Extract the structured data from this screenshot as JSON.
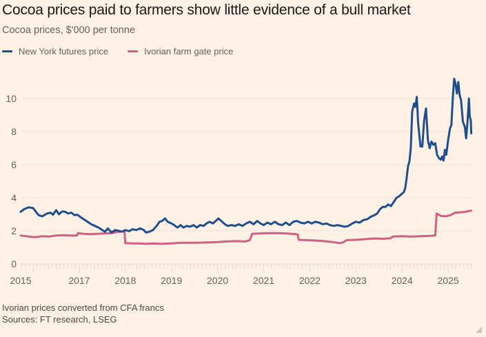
{
  "chart_data": {
    "type": "line",
    "title": "Cocoa prices paid to farmers show little evidence of a bull market",
    "subtitle": "Cocoa prices, $'000 per tonne",
    "xlabel": "",
    "ylabel": "",
    "ylim": [
      0,
      11
    ],
    "xlim": [
      2015.73,
      2025.5
    ],
    "yticks": [
      0,
      2,
      4,
      6,
      8,
      10
    ],
    "xticks": [
      {
        "value": 2015.73,
        "label": "2015"
      },
      {
        "value": 2017,
        "label": "2017"
      },
      {
        "value": 2018,
        "label": "2018"
      },
      {
        "value": 2019,
        "label": "2019"
      },
      {
        "value": 2020,
        "label": "2020"
      },
      {
        "value": 2021,
        "label": "2021"
      },
      {
        "value": 2022,
        "label": "2022"
      },
      {
        "value": 2023,
        "label": "2023"
      },
      {
        "value": 2024,
        "label": "2024"
      },
      {
        "value": 2025,
        "label": "2025"
      }
    ],
    "grid": true,
    "legend_position": "top-left",
    "series": [
      {
        "name": "New York futures price",
        "color": "#1f4e8c",
        "points": [
          [
            2015.73,
            3.15
          ],
          [
            2015.8,
            3.3
          ],
          [
            2015.9,
            3.42
          ],
          [
            2016.0,
            3.38
          ],
          [
            2016.05,
            3.2
          ],
          [
            2016.12,
            2.95
          ],
          [
            2016.2,
            2.88
          ],
          [
            2016.3,
            3.05
          ],
          [
            2016.38,
            3.1
          ],
          [
            2016.43,
            2.98
          ],
          [
            2016.5,
            3.25
          ],
          [
            2016.56,
            3.0
          ],
          [
            2016.63,
            3.18
          ],
          [
            2016.7,
            3.15
          ],
          [
            2016.76,
            3.05
          ],
          [
            2016.83,
            3.1
          ],
          [
            2016.9,
            2.95
          ],
          [
            2016.96,
            2.98
          ],
          [
            2017.02,
            2.85
          ],
          [
            2017.1,
            2.7
          ],
          [
            2017.18,
            2.55
          ],
          [
            2017.26,
            2.4
          ],
          [
            2017.34,
            2.3
          ],
          [
            2017.42,
            2.2
          ],
          [
            2017.5,
            2.05
          ],
          [
            2017.56,
            1.95
          ],
          [
            2017.62,
            2.15
          ],
          [
            2017.7,
            1.9
          ],
          [
            2017.78,
            2.05
          ],
          [
            2017.86,
            2.0
          ],
          [
            2017.93,
            1.95
          ],
          [
            2018.0,
            2.05
          ],
          [
            2018.08,
            1.98
          ],
          [
            2018.16,
            2.1
          ],
          [
            2018.24,
            2.05
          ],
          [
            2018.32,
            2.15
          ],
          [
            2018.4,
            2.05
          ],
          [
            2018.45,
            1.9
          ],
          [
            2018.52,
            1.95
          ],
          [
            2018.6,
            2.05
          ],
          [
            2018.68,
            2.3
          ],
          [
            2018.74,
            2.55
          ],
          [
            2018.8,
            2.6
          ],
          [
            2018.86,
            2.75
          ],
          [
            2018.92,
            2.55
          ],
          [
            2019.0,
            2.45
          ],
          [
            2019.06,
            2.35
          ],
          [
            2019.13,
            2.2
          ],
          [
            2019.2,
            2.35
          ],
          [
            2019.26,
            2.2
          ],
          [
            2019.33,
            2.3
          ],
          [
            2019.4,
            2.25
          ],
          [
            2019.48,
            2.35
          ],
          [
            2019.55,
            2.2
          ],
          [
            2019.62,
            2.35
          ],
          [
            2019.7,
            2.3
          ],
          [
            2019.76,
            2.45
          ],
          [
            2019.83,
            2.55
          ],
          [
            2019.9,
            2.45
          ],
          [
            2019.96,
            2.6
          ],
          [
            2020.02,
            2.75
          ],
          [
            2020.08,
            2.6
          ],
          [
            2020.16,
            2.4
          ],
          [
            2020.22,
            2.3
          ],
          [
            2020.3,
            2.35
          ],
          [
            2020.38,
            2.3
          ],
          [
            2020.46,
            2.4
          ],
          [
            2020.54,
            2.3
          ],
          [
            2020.62,
            2.45
          ],
          [
            2020.7,
            2.55
          ],
          [
            2020.78,
            2.4
          ],
          [
            2020.86,
            2.6
          ],
          [
            2020.93,
            2.45
          ],
          [
            2021.0,
            2.35
          ],
          [
            2021.08,
            2.5
          ],
          [
            2021.16,
            2.4
          ],
          [
            2021.24,
            2.55
          ],
          [
            2021.32,
            2.4
          ],
          [
            2021.4,
            2.35
          ],
          [
            2021.48,
            2.5
          ],
          [
            2021.56,
            2.35
          ],
          [
            2021.64,
            2.55
          ],
          [
            2021.72,
            2.6
          ],
          [
            2021.8,
            2.5
          ],
          [
            2021.88,
            2.45
          ],
          [
            2021.96,
            2.55
          ],
          [
            2022.04,
            2.45
          ],
          [
            2022.12,
            2.55
          ],
          [
            2022.2,
            2.5
          ],
          [
            2022.28,
            2.4
          ],
          [
            2022.36,
            2.45
          ],
          [
            2022.44,
            2.35
          ],
          [
            2022.52,
            2.3
          ],
          [
            2022.6,
            2.35
          ],
          [
            2022.68,
            2.3
          ],
          [
            2022.76,
            2.25
          ],
          [
            2022.84,
            2.3
          ],
          [
            2022.92,
            2.45
          ],
          [
            2023.0,
            2.55
          ],
          [
            2023.08,
            2.5
          ],
          [
            2023.16,
            2.65
          ],
          [
            2023.24,
            2.7
          ],
          [
            2023.32,
            2.85
          ],
          [
            2023.4,
            2.95
          ],
          [
            2023.46,
            3.05
          ],
          [
            2023.52,
            3.3
          ],
          [
            2023.58,
            3.45
          ],
          [
            2023.64,
            3.45
          ],
          [
            2023.7,
            3.6
          ],
          [
            2023.76,
            3.5
          ],
          [
            2023.82,
            3.75
          ],
          [
            2023.88,
            4.0
          ],
          [
            2023.94,
            4.1
          ],
          [
            2024.0,
            4.25
          ],
          [
            2024.04,
            4.35
          ],
          [
            2024.07,
            4.6
          ],
          [
            2024.1,
            5.2
          ],
          [
            2024.13,
            5.9
          ],
          [
            2024.16,
            6.2
          ],
          [
            2024.19,
            7.0
          ],
          [
            2024.22,
            9.2
          ],
          [
            2024.26,
            9.7
          ],
          [
            2024.29,
            9.5
          ],
          [
            2024.32,
            10.1
          ],
          [
            2024.35,
            8.5
          ],
          [
            2024.4,
            7.1
          ],
          [
            2024.44,
            7.1
          ],
          [
            2024.48,
            8.7
          ],
          [
            2024.52,
            9.4
          ],
          [
            2024.56,
            7.5
          ],
          [
            2024.6,
            7.0
          ],
          [
            2024.64,
            7.4
          ],
          [
            2024.68,
            7.2
          ],
          [
            2024.72,
            7.3
          ],
          [
            2024.76,
            6.6
          ],
          [
            2024.8,
            6.4
          ],
          [
            2024.84,
            6.3
          ],
          [
            2024.87,
            6.5
          ],
          [
            2024.9,
            6.25
          ],
          [
            2024.93,
            6.9
          ],
          [
            2024.96,
            6.6
          ],
          [
            2025.0,
            7.5
          ],
          [
            2025.04,
            8.2
          ],
          [
            2025.07,
            8.4
          ],
          [
            2025.1,
            10.0
          ],
          [
            2025.13,
            11.2
          ],
          [
            2025.16,
            10.9
          ],
          [
            2025.19,
            10.3
          ],
          [
            2025.22,
            11.0
          ],
          [
            2025.25,
            10.2
          ],
          [
            2025.28,
            9.9
          ],
          [
            2025.32,
            8.6
          ],
          [
            2025.36,
            8.3
          ],
          [
            2025.39,
            7.6
          ],
          [
            2025.42,
            8.6
          ],
          [
            2025.45,
            10.0
          ],
          [
            2025.47,
            8.9
          ],
          [
            2025.49,
            8.7
          ],
          [
            2025.5,
            7.9
          ]
        ]
      },
      {
        "name": "Ivorian farm gate price",
        "color": "#d0607f",
        "points": [
          [
            2015.73,
            1.72
          ],
          [
            2015.9,
            1.66
          ],
          [
            2016.05,
            1.62
          ],
          [
            2016.2,
            1.68
          ],
          [
            2016.35,
            1.66
          ],
          [
            2016.5,
            1.72
          ],
          [
            2016.65,
            1.74
          ],
          [
            2016.8,
            1.72
          ],
          [
            2016.95,
            1.72
          ],
          [
            2016.97,
            1.86
          ],
          [
            2017.1,
            1.82
          ],
          [
            2017.25,
            1.8
          ],
          [
            2017.4,
            1.82
          ],
          [
            2017.55,
            1.84
          ],
          [
            2017.7,
            1.86
          ],
          [
            2017.8,
            1.92
          ],
          [
            2017.9,
            1.95
          ],
          [
            2017.98,
            1.98
          ],
          [
            2018.0,
            1.26
          ],
          [
            2018.15,
            1.24
          ],
          [
            2018.3,
            1.24
          ],
          [
            2018.45,
            1.22
          ],
          [
            2018.6,
            1.24
          ],
          [
            2018.75,
            1.22
          ],
          [
            2019.0,
            1.24
          ],
          [
            2019.2,
            1.28
          ],
          [
            2019.5,
            1.28
          ],
          [
            2019.8,
            1.3
          ],
          [
            2020.0,
            1.32
          ],
          [
            2020.2,
            1.36
          ],
          [
            2020.4,
            1.38
          ],
          [
            2020.6,
            1.36
          ],
          [
            2020.7,
            1.44
          ],
          [
            2020.75,
            1.82
          ],
          [
            2020.9,
            1.84
          ],
          [
            2021.1,
            1.86
          ],
          [
            2021.3,
            1.86
          ],
          [
            2021.5,
            1.84
          ],
          [
            2021.7,
            1.8
          ],
          [
            2021.74,
            1.78
          ],
          [
            2021.76,
            1.46
          ],
          [
            2021.9,
            1.44
          ],
          [
            2022.1,
            1.42
          ],
          [
            2022.3,
            1.38
          ],
          [
            2022.5,
            1.32
          ],
          [
            2022.65,
            1.26
          ],
          [
            2022.72,
            1.3
          ],
          [
            2022.8,
            1.44
          ],
          [
            2023.0,
            1.46
          ],
          [
            2023.2,
            1.5
          ],
          [
            2023.4,
            1.54
          ],
          [
            2023.6,
            1.52
          ],
          [
            2023.75,
            1.55
          ],
          [
            2023.8,
            1.66
          ],
          [
            2024.0,
            1.68
          ],
          [
            2024.2,
            1.66
          ],
          [
            2024.4,
            1.68
          ],
          [
            2024.6,
            1.7
          ],
          [
            2024.72,
            1.72
          ],
          [
            2024.75,
            3.05
          ],
          [
            2024.85,
            2.9
          ],
          [
            2024.95,
            2.88
          ],
          [
            2025.05,
            2.95
          ],
          [
            2025.15,
            3.1
          ],
          [
            2025.25,
            3.12
          ],
          [
            2025.35,
            3.14
          ],
          [
            2025.45,
            3.2
          ],
          [
            2025.5,
            3.22
          ]
        ]
      }
    ]
  },
  "legend": {
    "items": [
      {
        "label": "New York futures price",
        "color": "#1f4e8c"
      },
      {
        "label": "Ivorian farm gate price",
        "color": "#d0607f"
      }
    ]
  },
  "footer": {
    "note": "Ivorian prices converted from CFA francs",
    "sources": "Sources: FT research, LSEG"
  }
}
